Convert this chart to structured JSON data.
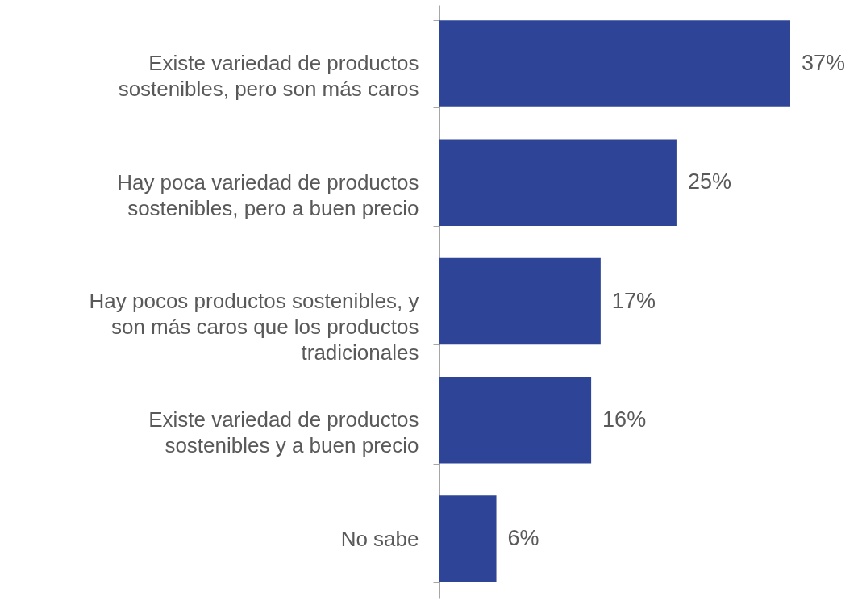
{
  "chart_data": {
    "type": "bar",
    "orientation": "horizontal",
    "categories": [
      "Existe variedad de productos sostenibles, pero son más caros",
      "Hay poca variedad de productos sostenibles, pero a buen precio",
      "Hay pocos productos sostenibles, y son más caros que los productos tradicionales",
      "Existe variedad de productos sostenibles y a buen precio",
      "No sabe"
    ],
    "values": [
      37,
      25,
      17,
      16,
      6
    ],
    "value_labels": [
      "37%",
      "25%",
      "17%",
      "16%",
      "6%"
    ],
    "color": "#2e4497"
  }
}
